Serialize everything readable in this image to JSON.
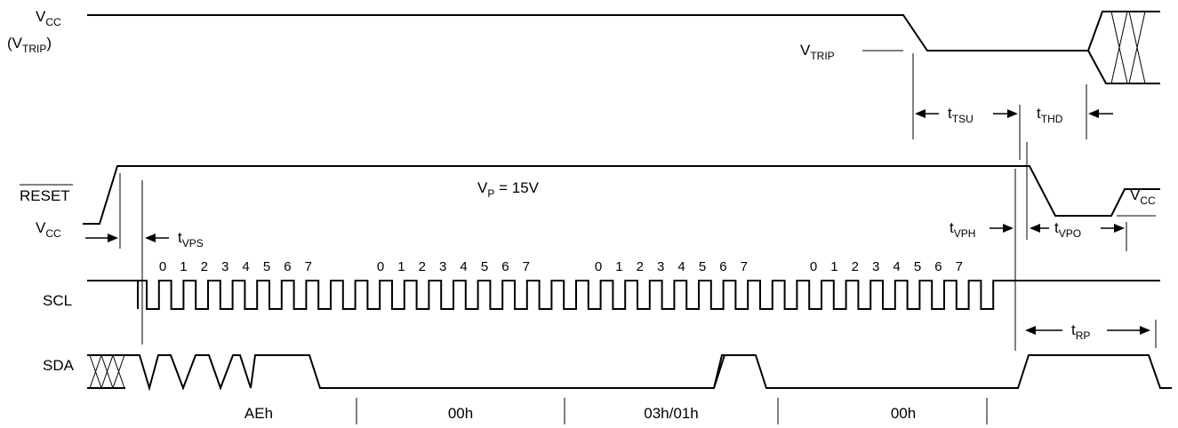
{
  "signals": {
    "vcc": {
      "main": "V",
      "sub": "CC"
    },
    "vtrip_paren": {
      "open": "(V",
      "sub": "TRIP",
      "close": ")"
    },
    "reset": "RESET",
    "vcc2": {
      "main": "V",
      "sub": "CC"
    },
    "scl": "SCL",
    "sda": "SDA"
  },
  "levels": {
    "vtrip": {
      "main": "V",
      "sub": "TRIP"
    },
    "vp": {
      "main": "V",
      "sub": "P",
      "rest": " = 15V"
    },
    "vcc_right": {
      "main": "V",
      "sub": "CC"
    }
  },
  "timing": {
    "tsu": {
      "main": "t",
      "sub": "TSU"
    },
    "thd": {
      "main": "t",
      "sub": "THD"
    },
    "vps": {
      "main": "t",
      "sub": "VPS"
    },
    "vph": {
      "main": "t",
      "sub": "VPH"
    },
    "vpo": {
      "main": "t",
      "sub": "VPO"
    },
    "rp": {
      "main": "t",
      "sub": "RP"
    }
  },
  "bit_numbers": [
    "0",
    "1",
    "2",
    "3",
    "4",
    "5",
    "6",
    "7"
  ],
  "bytes": [
    "AEh",
    "00h",
    "03h/01h",
    "00h"
  ]
}
